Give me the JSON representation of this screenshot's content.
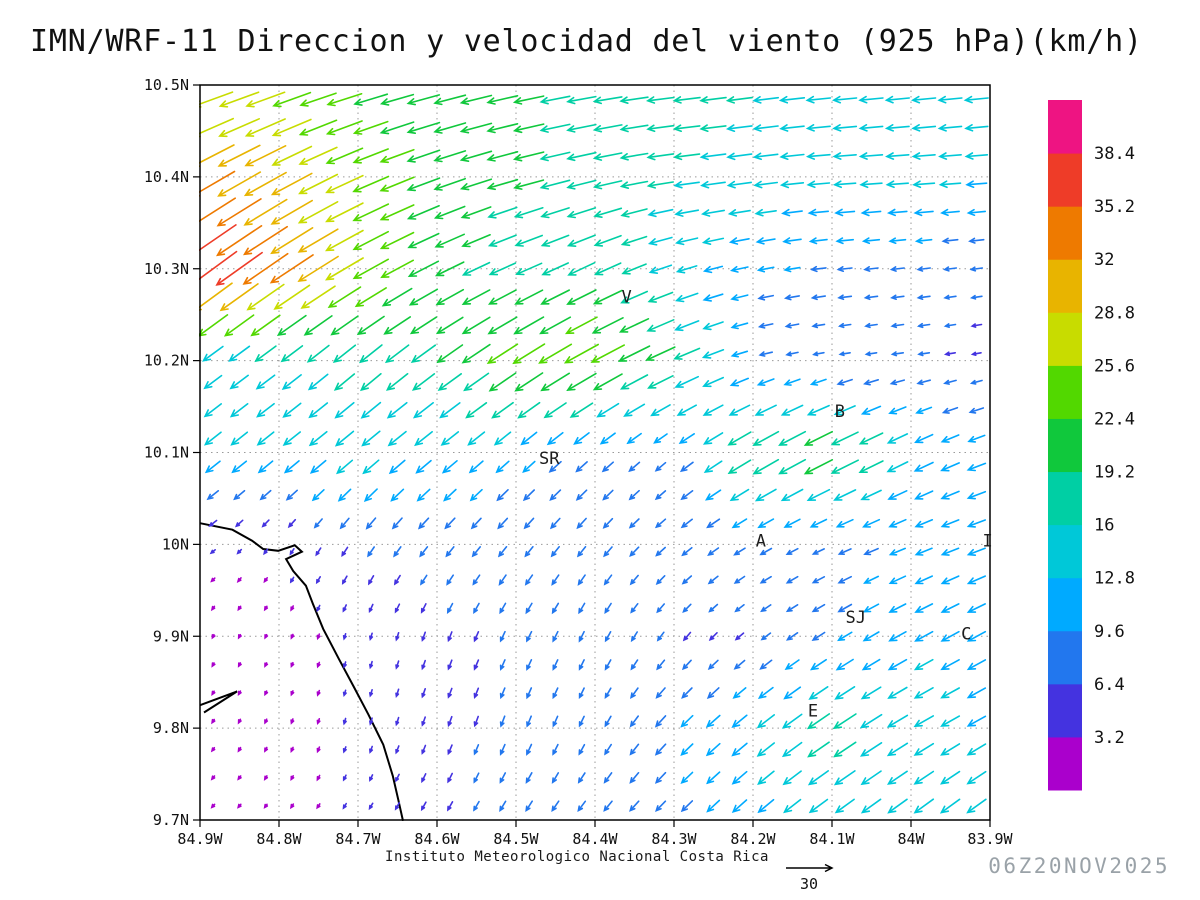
{
  "title": "IMN/WRF-11 Direccion y velocidad del viento (925 hPa)(km/h)",
  "footer": {
    "institute": "Instituto Meteorologico Nacional Costa Rica",
    "timestamp": "06Z20NOV2025"
  },
  "chart_data": {
    "type": "vector_field",
    "title": "IMN/WRF-11 Direccion y velocidad del viento (925 hPa)(km/h)",
    "units": "km/h",
    "level": "925 hPa",
    "lon_range": [
      -84.9,
      -83.9
    ],
    "lat_range": [
      9.7,
      10.5
    ],
    "x_ticks": [
      "84.9W",
      "84.8W",
      "84.7W",
      "84.6W",
      "84.5W",
      "84.4W",
      "84.3W",
      "84.2W",
      "84.1W",
      "84W",
      "83.9W"
    ],
    "y_ticks": [
      "10.5N",
      "10.4N",
      "10.3N",
      "10.2N",
      "10.1N",
      "10N",
      "9.9N",
      "9.8N",
      "9.7N"
    ],
    "grid_on": true,
    "legend_position": "right",
    "colorbar": {
      "levels": [
        3.2,
        6.4,
        9.6,
        12.8,
        16,
        19.2,
        22.4,
        25.6,
        28.8,
        32,
        35.2,
        38.4
      ],
      "colors": [
        "#aa00cc",
        "#4433e0",
        "#2277ee",
        "#00aaff",
        "#00c8d8",
        "#00cfa4",
        "#10c83c",
        "#52d800",
        "#c8dc00",
        "#e8b400",
        "#ee7a00",
        "#ee3c28",
        "#ee1482"
      ]
    },
    "vector_scale": {
      "reference_speed": 30
    },
    "grid": {
      "lons": [
        -84.9,
        -84.8,
        -84.7,
        -84.6,
        -84.5,
        -84.4,
        -84.3,
        -84.2,
        -84.1,
        -84.0,
        -83.9
      ],
      "lats": [
        10.5,
        10.4,
        10.3,
        10.2,
        10.1,
        10.0,
        9.9,
        9.8,
        9.7
      ],
      "u_kmh": [
        [
          -25,
          -24,
          -21,
          -20,
          -19,
          -18,
          -17,
          -16,
          -15,
          -15,
          -15
        ],
        [
          -28,
          -26,
          -23,
          -20,
          -19,
          -18,
          -16,
          -15,
          -14,
          -14,
          -13
        ],
        [
          -31,
          -28,
          -23,
          -18,
          -16,
          -17,
          -13,
          -10,
          -9,
          -8,
          -7
        ],
        [
          -11,
          -12,
          -13,
          -15,
          -20,
          -22,
          -18,
          -8,
          -6,
          -7,
          -5
        ],
        [
          -10,
          -10,
          -11,
          -10,
          -8,
          -7,
          -6,
          -17,
          -20,
          -12,
          -11
        ],
        [
          -3,
          -2,
          -4,
          -5,
          -5,
          -5,
          -6,
          -7,
          -7,
          -10,
          -11
        ],
        [
          -1,
          -1,
          -1,
          -2,
          -3,
          -3,
          -4,
          -5,
          -8,
          -11,
          -11
        ],
        [
          -1.5,
          -1,
          -1,
          -2,
          -2.5,
          -3,
          -7,
          -10,
          -15,
          -12,
          -11
        ],
        [
          -2,
          -1.5,
          -2,
          -3,
          -4,
          -5,
          -6,
          -9,
          -11,
          -12,
          -12
        ]
      ],
      "v_kmh": [
        [
          -8,
          -8,
          -6,
          -5,
          -4,
          -3,
          -2,
          -2,
          -1.5,
          -1.5,
          -1.5
        ],
        [
          -16,
          -14,
          -10,
          -7,
          -5,
          -4,
          -2,
          -2,
          -1,
          -1,
          -1
        ],
        [
          -23,
          -19,
          -13,
          -9,
          -7,
          -8,
          -4,
          -2,
          -1,
          -1,
          -1
        ],
        [
          -8,
          -9,
          -11,
          -11,
          -13,
          -12,
          -8,
          -2,
          -1,
          -1,
          -1
        ],
        [
          -8,
          -8,
          -9,
          -8,
          -7,
          -6,
          -5,
          -10,
          -10,
          -6,
          -4
        ],
        [
          -2,
          -3,
          -6,
          -6,
          -6,
          -6,
          -5,
          -4,
          -3,
          -4,
          -4
        ],
        [
          -2,
          -2,
          -3.5,
          -5.5,
          -6,
          -6,
          -5,
          -4,
          -5,
          -6,
          -6
        ],
        [
          -2,
          -2.5,
          -3.5,
          -5.5,
          -6.5,
          -6,
          -7,
          -8,
          -10,
          -7,
          -6
        ],
        [
          -2,
          -2,
          -3,
          -5,
          -6,
          -6,
          -6,
          -8,
          -8,
          -9,
          -9
        ]
      ]
    },
    "cities": [
      {
        "label": "V",
        "lon": -84.36,
        "lat": 10.27
      },
      {
        "label": "B",
        "lon": -84.09,
        "lat": 10.145
      },
      {
        "label": "SR",
        "lon": -84.458,
        "lat": 10.094
      },
      {
        "label": "A",
        "lon": -84.19,
        "lat": 10.004
      },
      {
        "label": "SJ",
        "lon": -84.07,
        "lat": 9.921
      },
      {
        "label": "C",
        "lon": -83.93,
        "lat": 9.903
      },
      {
        "label": "E",
        "lon": -84.124,
        "lat": 9.819
      },
      {
        "label": "I",
        "lon": -83.903,
        "lat": 10.004
      }
    ],
    "coastlines": [
      [
        [
          -84.9,
          10.023
        ],
        [
          -84.859,
          10.016
        ],
        [
          -84.834,
          10.004
        ],
        [
          -84.82,
          9.995
        ],
        [
          -84.801,
          9.993
        ],
        [
          -84.78,
          9.999
        ],
        [
          -84.771,
          9.992
        ],
        [
          -84.791,
          9.984
        ],
        [
          -84.782,
          9.971
        ],
        [
          -84.766,
          9.955
        ],
        [
          -84.757,
          9.935
        ],
        [
          -84.744,
          9.908
        ],
        [
          -84.724,
          9.875
        ],
        [
          -84.706,
          9.846
        ],
        [
          -84.687,
          9.815
        ],
        [
          -84.668,
          9.782
        ],
        [
          -84.656,
          9.748
        ],
        [
          -84.649,
          9.722
        ],
        [
          -84.643,
          9.699
        ]
      ],
      [
        [
          -84.9,
          9.825
        ],
        [
          -84.853,
          9.84
        ],
        [
          -84.895,
          9.817
        ]
      ]
    ]
  }
}
